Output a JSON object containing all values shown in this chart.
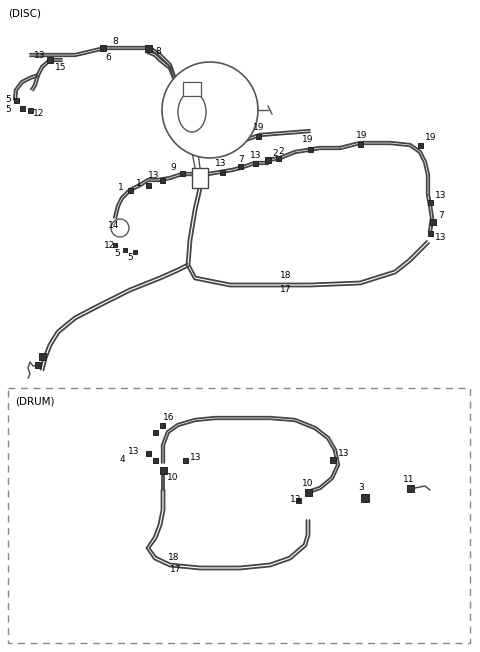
{
  "bg_color": "#ffffff",
  "line_color": "#444444",
  "text_color": "#000000",
  "title_disc": "(DISC)",
  "title_drum": "(DRUM)",
  "fig_width": 4.8,
  "fig_height": 6.52,
  "dpi": 100
}
